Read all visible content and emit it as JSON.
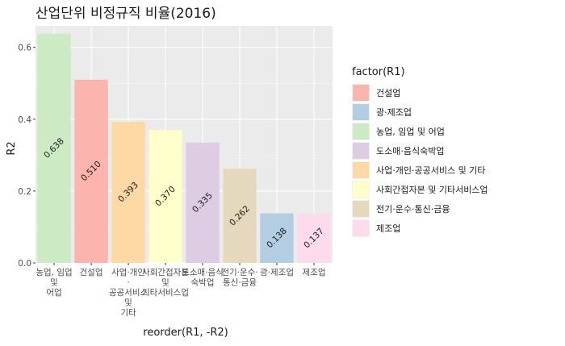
{
  "chart_data": {
    "type": "bar",
    "title": "산업단위 비정규직 비율(2016)",
    "xlabel": "reorder(R1, -R2)",
    "ylabel": "R2",
    "ylim": [
      0,
      0.66
    ],
    "yticks": [
      0.0,
      0.2,
      0.4,
      0.6
    ],
    "ytick_labels": [
      "0.0",
      "0.2",
      "0.4",
      "0.6"
    ],
    "grid": true,
    "legend_position": "right",
    "legend_title": "factor(R1)",
    "categories": [
      {
        "label": "농업, 임업 및 어업",
        "tick_lines": [
          "농업, 임업",
          "및",
          "어업"
        ],
        "value": 0.638,
        "value_label": "0.638",
        "color": "#CCEBC5"
      },
      {
        "label": "건설업",
        "tick_lines": [
          "건설업"
        ],
        "value": 0.51,
        "value_label": "0.510",
        "color": "#FBB4AE"
      },
      {
        "label": "사업·개인·공공서비스 및 기타",
        "tick_lines": [
          "사업·개인",
          "·",
          "공공서비스",
          "및",
          "기타"
        ],
        "value": 0.393,
        "value_label": "0.393",
        "color": "#FED9A6"
      },
      {
        "label": "사회간접자본 및 기타서비스업",
        "tick_lines": [
          "사회간접자본",
          "및",
          "기타서비스업"
        ],
        "value": 0.37,
        "value_label": "0.370",
        "color": "#FFFFCC"
      },
      {
        "label": "도소매·음식숙박업",
        "tick_lines": [
          "도소매·음식",
          "숙박업"
        ],
        "value": 0.335,
        "value_label": "0.335",
        "color": "#DECBE4"
      },
      {
        "label": "전기·운수·통신·금융",
        "tick_lines": [
          "전기·운수·",
          "통신·금융"
        ],
        "value": 0.262,
        "value_label": "0.262",
        "color": "#E5D8BD"
      },
      {
        "label": "광·제조업",
        "tick_lines": [
          "광·제조업"
        ],
        "value": 0.138,
        "value_label": "0.138",
        "color": "#B3CDE3"
      },
      {
        "label": "제조업",
        "tick_lines": [
          "제조업"
        ],
        "value": 0.137,
        "value_label": "0.137",
        "color": "#FDDAEC"
      }
    ],
    "legend": [
      {
        "label": "건설업",
        "color": "#FBB4AE"
      },
      {
        "label": "광·제조업",
        "color": "#B3CDE3"
      },
      {
        "label": "농업, 임업 및 어업",
        "color": "#CCEBC5"
      },
      {
        "label": "도소매·음식숙박업",
        "color": "#DECBE4"
      },
      {
        "label": "사업·개인·공공서비스 및 기타",
        "color": "#FED9A6"
      },
      {
        "label": "사회간접자본 및 기타서비스업",
        "color": "#FFFFCC"
      },
      {
        "label": "전기·운수·통신·금융",
        "color": "#E5D8BD"
      },
      {
        "label": "제조업",
        "color": "#FDDAEC"
      }
    ]
  }
}
